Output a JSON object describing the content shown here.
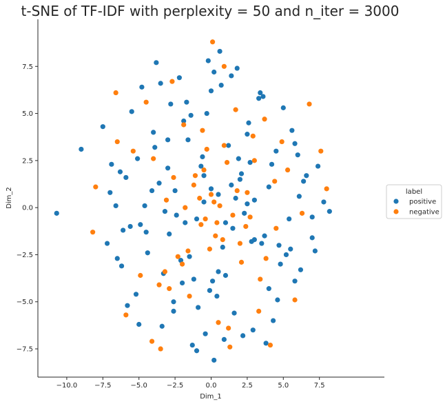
{
  "chart_data": {
    "type": "scatter",
    "title": "t-SNE of TF-IDF with perplexity = 50 and n_iter = 3000",
    "xlabel": "Dim_1",
    "ylabel": "Dim_2",
    "xlim": [
      -12,
      12
    ],
    "ylim": [
      -9,
      10
    ],
    "xticks": [
      -10.0,
      -7.5,
      -5.0,
      -2.5,
      0.0,
      2.5,
      5.0,
      7.5
    ],
    "xtick_labels": [
      "−10.0",
      "−7.5",
      "−5.0",
      "−2.5",
      "0.0",
      "2.5",
      "5.0",
      "7.5"
    ],
    "yticks": [
      -7.5,
      -5.0,
      -2.5,
      0.0,
      2.5,
      5.0,
      7.5
    ],
    "ytick_labels": [
      "−7.5",
      "−5.0",
      "−2.5",
      "0.0",
      "2.5",
      "5.0",
      "7.5"
    ],
    "grid": false,
    "legend": {
      "title": "label",
      "placement": "right"
    },
    "series": [
      {
        "name": "positive",
        "color": "#1f77b4",
        "x": [
          -10.7,
          -9.0,
          -7.5,
          -7.2,
          -6.9,
          -6.6,
          -6.2,
          -5.9,
          -5.5,
          -5.2,
          -4.8,
          -4.4,
          -4.1,
          -3.8,
          -3.4,
          -3.0,
          -2.6,
          -2.2,
          -1.8,
          -1.4,
          -1.0,
          -0.6,
          -0.2,
          0.2,
          0.6,
          1.0,
          1.4,
          1.8,
          2.2,
          2.6,
          3.0,
          3.4,
          3.8,
          4.2,
          4.6,
          5.0,
          5.4,
          5.8,
          6.2,
          6.6,
          7.0,
          7.4,
          7.8,
          8.2,
          -6.5,
          -5.0,
          -3.5,
          -2.0,
          -0.5,
          1.0,
          2.5,
          4.0,
          5.5,
          7.0,
          -4.5,
          -3.0,
          -1.5,
          0.0,
          1.5,
          3.0,
          4.5,
          6.0,
          -2.5,
          -1.0,
          0.5,
          2.0,
          3.5,
          -0.7,
          0.8,
          2.3,
          -1.6,
          0.1,
          1.9,
          -3.2,
          3.3,
          -5.8,
          5.8,
          -7.0,
          7.2,
          -4.0,
          4.3,
          -2.8,
          2.9,
          -0.3,
          0.4,
          1.2,
          -1.2,
          -2.1,
          2.1,
          -3.6,
          3.7,
          -4.9,
          4.8,
          -6.1,
          6.4,
          0.0,
          -0.9,
          0.9,
          -1.9,
          1.6,
          -2.9,
          2.7,
          -3.9,
          4.0,
          -5.1,
          5.2,
          -6.3,
          6.1,
          -0.4,
          0.7,
          -1.3,
          1.4,
          -2.4,
          2.5,
          -3.3,
          3.6,
          -4.6,
          4.7,
          -5.6,
          5.6,
          0.2,
          -0.1,
          -0.5,
          0.5,
          -1.7,
          1.7,
          -2.6,
          2.8
        ],
        "y": [
          -0.3,
          3.1,
          4.3,
          -1.9,
          2.3,
          0.1,
          -3.1,
          1.6,
          5.1,
          -4.6,
          6.4,
          -2.4,
          0.9,
          7.7,
          -6.3,
          3.6,
          -5.5,
          6.9,
          -0.8,
          4.9,
          -7.6,
          2.7,
          7.8,
          -8.1,
          8.3,
          -3.6,
          1.2,
          7.4,
          -6.8,
          4.5,
          -1.7,
          6.1,
          -7.2,
          2.3,
          -4.9,
          5.3,
          -0.6,
          3.4,
          -3.3,
          1.7,
          -1.6,
          2.2,
          0.3,
          -0.2,
          -2.7,
          -6.2,
          6.6,
          -4.0,
          0.3,
          -0.8,
          3.9,
          1.1,
          -2.2,
          -0.5,
          -1.3,
          2.1,
          -2.6,
          1.0,
          -1.1,
          0.4,
          3.0,
          2.8,
          0.9,
          -0.6,
          0.7,
          1.5,
          -1.9,
          2.2,
          -2.1,
          -0.3,
          3.6,
          -3.9,
          2.6,
          -0.2,
          5.8,
          -5.2,
          -3.9,
          0.8,
          -2.3,
          4.0,
          -6.0,
          5.5,
          -6.5,
          5.0,
          -4.7,
          3.3,
          -3.8,
          -2.8,
          1.8,
          1.3,
          -1.5,
          -0.9,
          -3.0,
          -1.2,
          1.4,
          6.2,
          -5.3,
          -7.0,
          4.6,
          -5.6,
          -1.4,
          2.4,
          3.2,
          -4.3,
          2.6,
          -2.5,
          1.9,
          0.6,
          -6.7,
          6.5,
          -7.3,
          7.0,
          -0.4,
          0.2,
          -3.5,
          5.9,
          0.1,
          -2.0,
          -1.0,
          4.1,
          7.2,
          -4.4,
          1.7,
          -3.4,
          5.6,
          0.5,
          -5.0,
          -1.8
        ]
      },
      {
        "name": "negative",
        "color": "#ff7f0e",
        "x": [
          -8.0,
          -8.2,
          -6.6,
          -6.5,
          -5.9,
          -5.4,
          -4.9,
          -4.5,
          -4.1,
          -3.6,
          -3.5,
          -3.1,
          -2.7,
          -2.3,
          -1.9,
          -1.5,
          -1.1,
          -0.7,
          -0.3,
          0.1,
          0.5,
          0.9,
          1.3,
          1.7,
          2.1,
          2.5,
          2.9,
          3.3,
          3.7,
          4.1,
          4.5,
          4.9,
          5.3,
          5.8,
          6.3,
          6.8,
          7.6,
          8.0,
          -0.8,
          0.3,
          1.1,
          -1.6,
          2.0,
          -2.6,
          3.0,
          -3.2,
          3.8,
          -0.4,
          0.6,
          1.5,
          -1.2,
          2.4,
          -2.0,
          0.9,
          -0.1,
          0.0,
          0.4,
          -0.5,
          1.8,
          -1.8,
          2.7,
          -2.9,
          3.4,
          -4.0,
          4.4,
          0.8,
          0.2,
          -0.6,
          1.2
        ],
        "y": [
          1.1,
          -1.3,
          6.1,
          3.5,
          -5.7,
          3.0,
          -3.6,
          5.6,
          -7.1,
          -4.1,
          -7.5,
          0.4,
          6.7,
          -2.6,
          4.4,
          -4.7,
          1.7,
          -0.9,
          3.1,
          8.8,
          -6.1,
          7.5,
          -7.4,
          5.2,
          -2.9,
          0.8,
          3.8,
          -5.5,
          4.7,
          -7.3,
          -1.1,
          3.5,
          2.0,
          -4.9,
          -0.3,
          5.5,
          3.0,
          1.0,
          0.5,
          -1.5,
          2.4,
          -2.3,
          -1.9,
          1.6,
          2.5,
          -3.4,
          -2.7,
          -0.6,
          0.1,
          -0.4,
          1.2,
          -1.0,
          -3.0,
          3.3,
          -2.2,
          0.7,
          -0.8,
          2.0,
          0.9,
          0.0,
          -0.5,
          -4.3,
          -3.8,
          2.6,
          1.4,
          -1.7,
          0.3,
          4.1,
          -6.4
        ]
      }
    ]
  }
}
